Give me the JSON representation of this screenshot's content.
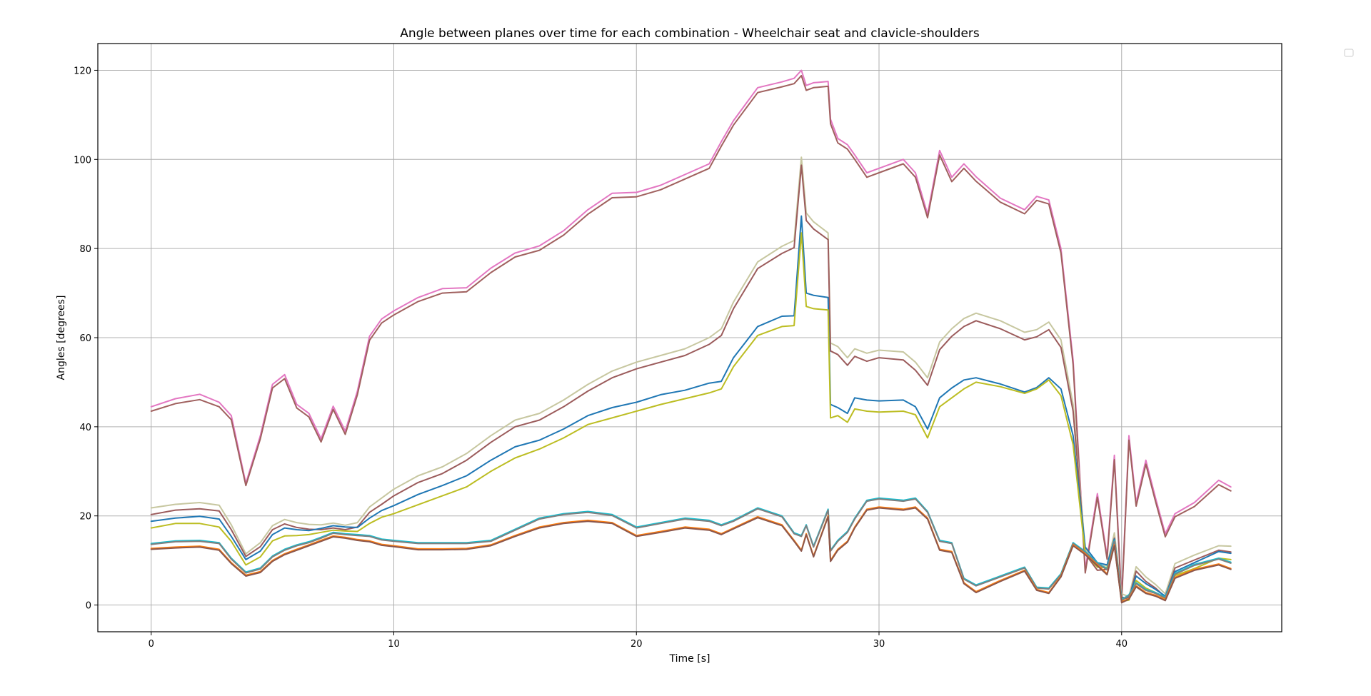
{
  "chart_data": {
    "type": "line",
    "title": "Angle between planes over time for each combination - Wheelchair seat and clavicle-shoulders",
    "xlabel": "Time [s]",
    "ylabel": "Angles [degrees]",
    "xlim": [
      -2.2,
      46.6
    ],
    "ylim": [
      -6,
      126
    ],
    "xticks": [
      0,
      10,
      20,
      30,
      40
    ],
    "yticks": [
      0,
      20,
      40,
      60,
      80,
      100,
      120
    ],
    "grid": true,
    "legend": "top-right (empty)",
    "x": [
      0,
      1,
      2,
      2.8,
      3.3,
      3.9,
      4.5,
      5,
      5.5,
      6,
      6.5,
      7,
      7.5,
      8,
      8.5,
      9,
      9.5,
      10,
      11,
      12,
      13,
      14,
      15,
      16,
      17,
      18,
      19,
      20,
      21,
      22,
      23,
      23.5,
      24,
      25,
      26,
      26.5,
      26.8,
      27,
      27.3,
      27.9,
      28,
      28.3,
      28.7,
      29,
      29.5,
      30,
      31,
      31.5,
      32,
      32.5,
      33,
      33.5,
      34,
      35,
      36,
      36.5,
      37,
      37.5,
      38,
      38.5,
      39,
      39.4,
      39.7,
      40,
      40.3,
      40.6,
      41,
      41.4,
      41.8,
      42.2,
      43,
      44,
      44.5
    ],
    "series": [
      {
        "color": "#e377c2",
        "values": [
          44.5,
          46.3,
          47.3,
          45.5,
          42.5,
          27.3,
          38,
          49.5,
          51.7,
          45,
          43,
          37.3,
          44.6,
          39,
          48,
          60.3,
          64.2,
          66,
          69,
          71,
          71.2,
          75.6,
          79,
          80.6,
          84,
          88.7,
          92.4,
          92.6,
          94.2,
          96.6,
          99,
          104,
          108.7,
          116.1,
          117.4,
          118.2,
          120,
          116.6,
          117.2,
          117.5,
          109,
          104.7,
          103.3,
          101,
          97,
          98,
          100,
          97,
          87.7,
          102,
          96,
          99,
          96.1,
          91.3,
          88.7,
          91.7,
          90.9,
          80,
          55,
          8,
          25,
          11,
          33.6,
          1.3,
          38,
          23,
          32.5,
          24,
          16,
          20.5,
          23,
          28,
          26.5
        ]
      },
      {
        "color": "#a0605e",
        "values": [
          43.5,
          45.2,
          46.1,
          44.5,
          41.6,
          26.8,
          37.3,
          48.7,
          50.8,
          44.2,
          42.2,
          36.6,
          43.9,
          38.3,
          47.2,
          59.4,
          63.3,
          65.1,
          68.1,
          70,
          70.3,
          74.6,
          78.1,
          79.6,
          83,
          87.7,
          91.4,
          91.6,
          93.2,
          95.6,
          98,
          103,
          107.7,
          115,
          116.3,
          117,
          118.8,
          115.5,
          116.1,
          116.4,
          108,
          103.7,
          102.3,
          100,
          96,
          97,
          99,
          96,
          86.9,
          101,
          95,
          98,
          95.1,
          90.4,
          87.8,
          90.8,
          90,
          79,
          54,
          7.2,
          24.2,
          10.3,
          32.6,
          0.8,
          37,
          22.2,
          31.6,
          23.2,
          15.3,
          19.8,
          22.1,
          27,
          25.6
        ]
      },
      {
        "color": "#c7c7a0",
        "values": [
          21.8,
          22.6,
          23,
          22.4,
          18,
          11.5,
          14,
          17.8,
          19.2,
          18.5,
          18.1,
          18,
          18.4,
          17.9,
          18.5,
          22,
          24,
          26,
          29,
          31,
          34,
          38,
          41.5,
          43,
          46,
          49.5,
          52.5,
          54.5,
          56,
          57.5,
          60,
          62,
          68,
          77,
          80.5,
          81.8,
          100.5,
          88,
          86,
          83.5,
          58.8,
          58,
          55.5,
          57.5,
          56.5,
          57.2,
          56.8,
          54.5,
          51,
          59,
          62,
          64.3,
          65.5,
          63.8,
          61.2,
          61.8,
          63.5,
          59.5,
          45,
          12.5,
          8.8,
          8.8,
          16.2,
          2.5,
          1.9,
          8.6,
          6.3,
          4.6,
          2.5,
          9.3,
          11.2,
          13.3,
          13.2
        ]
      },
      {
        "color": "#9b5b5b",
        "values": [
          20.3,
          21.3,
          21.6,
          21.1,
          16.9,
          10.9,
          13.1,
          16.9,
          18.2,
          17.4,
          17,
          16.9,
          17.3,
          16.9,
          17.5,
          20.8,
          22.6,
          24.5,
          27.5,
          29.5,
          32.5,
          36.5,
          40,
          41.5,
          44.5,
          48,
          51,
          53,
          54.5,
          56,
          58.5,
          60.5,
          66.5,
          75.5,
          78.9,
          80.2,
          98.7,
          86.3,
          84.4,
          82,
          57,
          56.2,
          53.8,
          55.8,
          54.7,
          55.5,
          55,
          52.7,
          49.3,
          57.3,
          60.3,
          62.5,
          63.8,
          62,
          59.5,
          60.2,
          61.8,
          57.8,
          43.5,
          11.5,
          7.8,
          8,
          15,
          1.8,
          1.3,
          7.6,
          5.3,
          3.8,
          1.8,
          8.3,
          10.1,
          12.3,
          11.9
        ]
      },
      {
        "color": "#1f77b4",
        "values": [
          18.8,
          19.5,
          19.9,
          19.3,
          15.4,
          10.2,
          12.1,
          15.8,
          17.3,
          16.9,
          16.7,
          17.2,
          17.8,
          17.5,
          17.4,
          19.5,
          21.2,
          22.3,
          24.8,
          26.8,
          29,
          32.5,
          35.5,
          37,
          39.5,
          42.5,
          44.3,
          45.5,
          47.2,
          48.2,
          49.8,
          50.2,
          55.5,
          62.5,
          64.8,
          64.9,
          87.3,
          70,
          69.5,
          69,
          45,
          44.3,
          43,
          46.5,
          46,
          45.8,
          46,
          44.5,
          39.5,
          46.5,
          48.7,
          50.5,
          51,
          49.6,
          47.8,
          48.8,
          51,
          48.5,
          38,
          13,
          9.5,
          9,
          14.8,
          1.5,
          1.7,
          6.5,
          4.8,
          3.5,
          2,
          7.5,
          9.5,
          12,
          11.6
        ]
      },
      {
        "color": "#bcbd22",
        "values": [
          17.3,
          18.3,
          18.3,
          17.5,
          14.3,
          9,
          10.8,
          14.4,
          15.5,
          15.6,
          15.8,
          16.3,
          16.8,
          16.6,
          16.5,
          18.3,
          19.7,
          20.5,
          22.5,
          24.5,
          26.5,
          30,
          33,
          35,
          37.5,
          40.5,
          42,
          43.5,
          45,
          46.3,
          47.6,
          48.5,
          53.5,
          60.5,
          62.5,
          62.7,
          83.5,
          67,
          66.5,
          66.2,
          42,
          42.5,
          41,
          44,
          43.5,
          43.3,
          43.5,
          42.7,
          37.5,
          44.5,
          46.5,
          48.5,
          50,
          49,
          47.5,
          48.5,
          50.5,
          47,
          36,
          11.5,
          8.5,
          8.4,
          13.4,
          0.8,
          1.1,
          5.5,
          3.8,
          2.8,
          1.4,
          6.6,
          8.2,
          10.5,
          10.2
        ]
      },
      {
        "color": "#17becf",
        "values": [
          13.8,
          14.4,
          14.5,
          14,
          10.5,
          7.4,
          8.3,
          11,
          12.5,
          13.5,
          14.2,
          15.2,
          16.3,
          16,
          15.8,
          15.6,
          14.8,
          14.5,
          14,
          14,
          14,
          14.5,
          17,
          19.5,
          20.5,
          21,
          20.3,
          17.5,
          18.5,
          19.5,
          19,
          18,
          19,
          21.8,
          20,
          16.2,
          15.6,
          18,
          13.2,
          21.5,
          12.3,
          14.5,
          16.5,
          19.5,
          23.5,
          24,
          23.5,
          24,
          21,
          14.5,
          14,
          6,
          4.5,
          6.5,
          8.5,
          4,
          3.8,
          7,
          14,
          12,
          9.5,
          8.1,
          14.5,
          1.2,
          2.3,
          5,
          3.5,
          2.8,
          1.8,
          7.1,
          9.1,
          10.5,
          9.6
        ]
      },
      {
        "color": "#7f7f7f",
        "values": [
          13.6,
          14.2,
          14.3,
          13.8,
          10.3,
          7.2,
          8.1,
          10.8,
          12.3,
          13.3,
          14,
          15,
          16.1,
          15.8,
          15.6,
          15.4,
          14.6,
          14.3,
          13.8,
          13.8,
          13.8,
          14.3,
          16.8,
          19.3,
          20.3,
          20.8,
          20.1,
          17.3,
          18.3,
          19.3,
          18.8,
          17.8,
          18.8,
          21.6,
          19.8,
          16,
          15.4,
          17.8,
          13,
          21.3,
          12.1,
          14.3,
          16.3,
          19.3,
          23.3,
          23.8,
          23.3,
          23.8,
          20.8,
          14.3,
          13.8,
          5.8,
          4.3,
          6.3,
          8.3,
          3.8,
          3.6,
          6.8,
          13.8,
          11.8,
          9.3,
          7.9,
          14.3,
          1,
          2.1,
          4.8,
          3.3,
          2.6,
          1.6,
          6.9,
          8.9,
          10.3,
          9.4
        ]
      },
      {
        "color": "#ff7f0e",
        "values": [
          12.7,
          13,
          13.2,
          12.5,
          9.5,
          6.7,
          7.5,
          10,
          11.5,
          12.5,
          13.5,
          14.5,
          15.5,
          15.2,
          14.7,
          14.4,
          13.6,
          13.3,
          12.6,
          12.6,
          12.7,
          13.5,
          15.6,
          17.5,
          18.5,
          19,
          18.5,
          15.6,
          16.5,
          17.5,
          17,
          16,
          17.3,
          19.8,
          18,
          14.5,
          12.3,
          16,
          11,
          20,
          10,
          12.5,
          14.3,
          17.5,
          21.5,
          22,
          21.5,
          22,
          19.5,
          12.5,
          12,
          5,
          3,
          5.5,
          7.8,
          3.5,
          2.8,
          6.5,
          13.5,
          11.5,
          9,
          7,
          13.5,
          0.7,
          1.5,
          4.3,
          2.8,
          2.2,
          1.2,
          6.2,
          8,
          9.2,
          8.2
        ]
      },
      {
        "color": "#8c564b",
        "values": [
          12.5,
          12.8,
          13,
          12.3,
          9.3,
          6.5,
          7.3,
          9.8,
          11.3,
          12.3,
          13.3,
          14.3,
          15.3,
          15,
          14.5,
          14.2,
          13.4,
          13.1,
          12.4,
          12.4,
          12.5,
          13.3,
          15.4,
          17.3,
          18.3,
          18.8,
          18.3,
          15.4,
          16.3,
          17.3,
          16.8,
          15.8,
          17.1,
          19.6,
          17.8,
          14.3,
          12.1,
          15.8,
          10.8,
          19.8,
          9.8,
          12.3,
          14.1,
          17.3,
          21.3,
          21.8,
          21.3,
          21.8,
          19.3,
          12.3,
          11.8,
          4.8,
          2.8,
          5.3,
          7.6,
          3.3,
          2.6,
          6.3,
          13.3,
          11.3,
          8.8,
          6.8,
          13.3,
          0.5,
          1.3,
          4.1,
          2.6,
          2,
          1,
          6,
          7.8,
          9,
          8
        ]
      }
    ]
  }
}
